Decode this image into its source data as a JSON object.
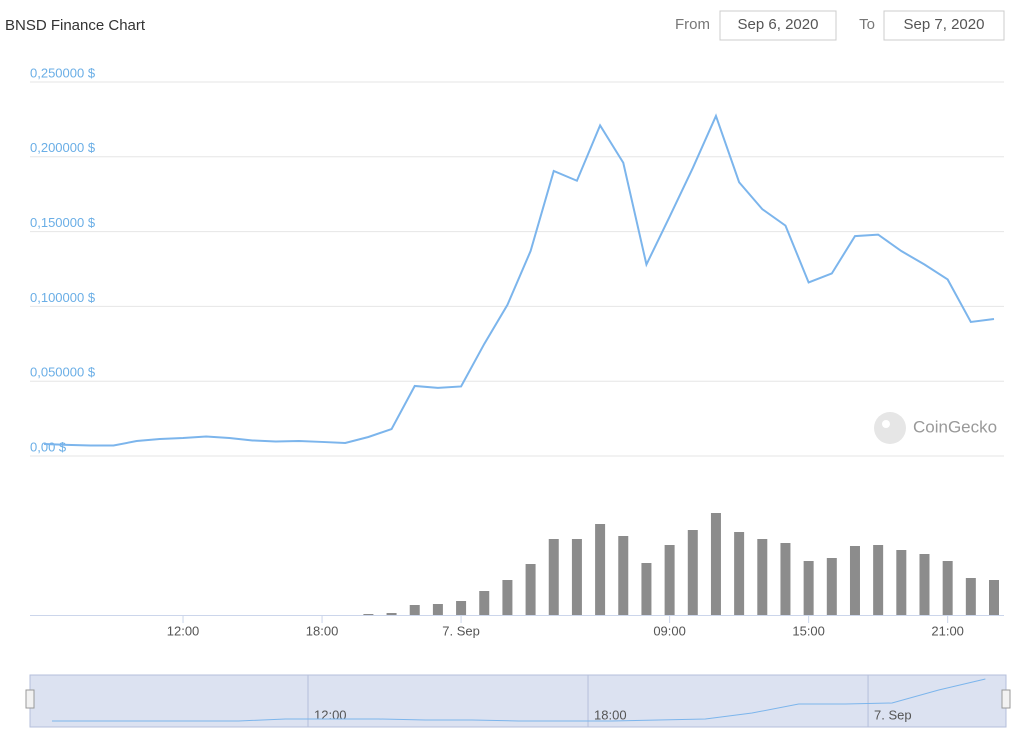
{
  "header": {
    "title": "BNSD Finance Chart",
    "from_label": "From",
    "from_value": "Sep 6, 2020",
    "to_label": "To",
    "to_value": "Sep 7, 2020",
    "watermark": "CoinGecko"
  },
  "chart_data": [
    {
      "type": "line",
      "categories": [
        null,
        null,
        null,
        null,
        null,
        null,
        "12:00",
        null,
        null,
        null,
        null,
        null,
        "18:00",
        null,
        null,
        null,
        null,
        null,
        "7. Sep",
        null,
        null,
        null,
        null,
        null,
        null,
        null,
        null,
        "09:00",
        null,
        null,
        null,
        null,
        null,
        "15:00",
        null,
        null,
        null,
        null,
        null,
        "21:00",
        null,
        null
      ],
      "values": [
        0.008,
        0.0074,
        0.007,
        0.007,
        0.01,
        0.0114,
        0.012,
        0.013,
        0.012,
        0.0104,
        0.0097,
        0.01,
        0.0094,
        0.0087,
        0.0127,
        0.018,
        0.0468,
        0.0455,
        0.0465,
        0.0749,
        0.101,
        0.137,
        0.1905,
        0.184,
        0.221,
        0.196,
        0.128,
        0.16,
        0.1925,
        0.2273,
        0.183,
        0.165,
        0.154,
        0.116,
        0.122,
        0.147,
        0.148,
        0.137,
        0.128,
        0.118,
        0.0896,
        0.0916
      ],
      "color": "#7cb5ec",
      "volume_values": [
        null,
        null,
        null,
        null,
        null,
        null,
        null,
        null,
        null,
        null,
        null,
        null,
        null,
        null,
        1,
        2,
        10,
        11,
        14,
        24,
        35,
        51,
        76,
        76,
        91,
        79,
        52,
        70,
        85,
        102,
        83,
        76,
        72,
        54,
        57,
        69,
        70,
        65,
        61,
        54,
        37,
        35
      ],
      "volume_color": "#8c8c8c",
      "ylim": [
        0,
        0.25
      ],
      "yticks": [
        {
          "value": 0,
          "label": "0,00 $"
        },
        {
          "value": 0.05,
          "label": "0,050000 $"
        },
        {
          "value": 0.1,
          "label": "0,100000 $"
        },
        {
          "value": 0.15,
          "label": "0,150000 $"
        },
        {
          "value": 0.2,
          "label": "0,200000 $"
        },
        {
          "value": 0.25,
          "label": "0,250000 $"
        }
      ],
      "grid": true
    },
    {
      "type": "line",
      "categories": [
        null,
        null,
        null,
        null,
        null,
        null,
        "12:00",
        null,
        null,
        null,
        null,
        null,
        "18:00",
        null,
        null,
        null,
        null,
        null,
        "7. Sep",
        null,
        null
      ],
      "values": [
        0.0025,
        0.0025,
        0.0025,
        0.0025,
        0.0025,
        0.0075,
        0.0075,
        0.0075,
        0.005,
        0.005,
        0.0025,
        0.0025,
        0.0025,
        0.005,
        0.0075,
        0.0225,
        0.045,
        0.045,
        0.0475,
        0.08,
        0.1075
      ],
      "color": "#7cb5ec"
    }
  ]
}
